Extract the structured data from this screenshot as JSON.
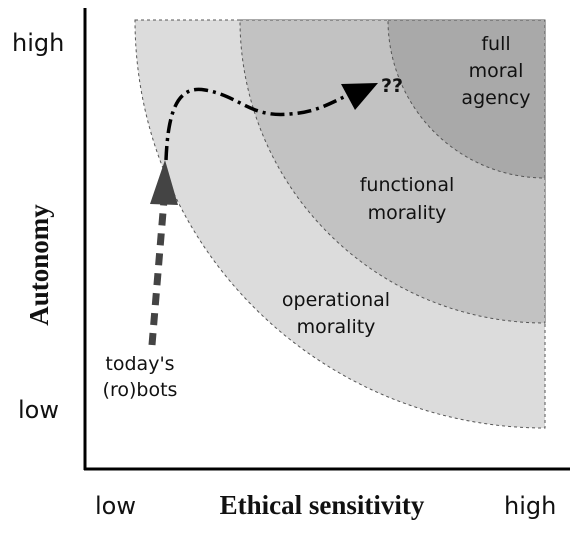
{
  "axes": {
    "y_label": "Autonomy",
    "x_label": "Ethical sensitivity",
    "y_high": "high",
    "y_low": "low",
    "x_low": "low",
    "x_high": "high"
  },
  "regions": {
    "operational": [
      "operational",
      "morality"
    ],
    "functional": [
      "functional",
      "morality"
    ],
    "full": [
      "full",
      "moral",
      "agency"
    ]
  },
  "annotations": {
    "unknown": "??",
    "start": [
      "today's",
      "(ro)bots"
    ]
  },
  "colors": {
    "operational_fill": "#dcdcdc",
    "functional_fill": "#c2c2c2",
    "full_fill": "#a9a9a9",
    "axis": "#000000",
    "text": "#111111"
  },
  "icons": {
    "up_arrow": "arrow-head-up",
    "right_arrow": "arrow-head-right"
  }
}
